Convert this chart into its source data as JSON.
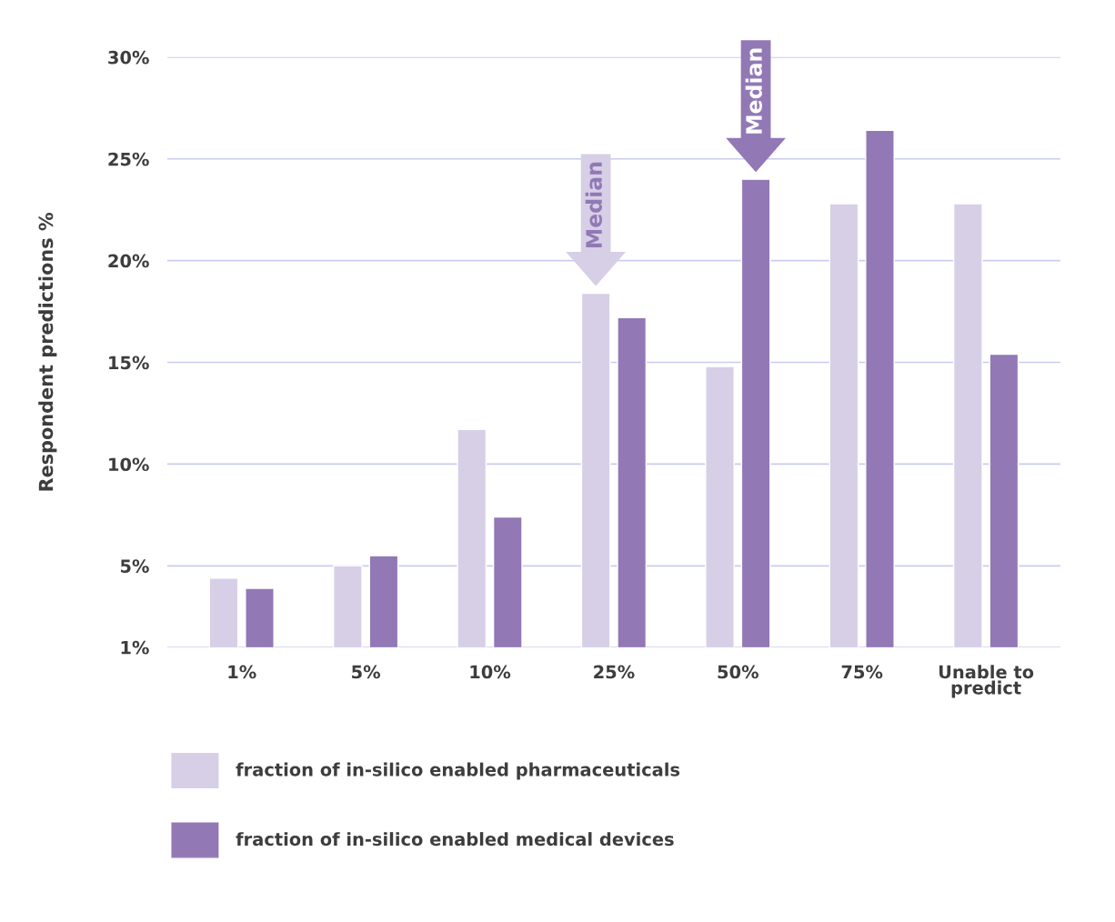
{
  "chart_data": {
    "type": "bar",
    "ylabel": "Respondent predictions %",
    "categories": [
      "1%",
      "5%",
      "10%",
      "25%",
      "50%",
      "75%",
      "Unable to\npredict"
    ],
    "series": [
      {
        "name": "fraction of in-silico enabled pharmaceuticals",
        "color": "#d6cfe6",
        "values": [
          4.4,
          5.0,
          11.7,
          18.4,
          14.8,
          22.8,
          22.8
        ]
      },
      {
        "name": "fraction of in-silico enabled medical devices",
        "color": "#9278b5",
        "values": [
          3.9,
          5.5,
          7.4,
          17.2,
          24.0,
          26.4,
          15.4
        ]
      }
    ],
    "ylim": [
      1,
      30
    ],
    "yticks": [
      {
        "value": 1,
        "label": "1%"
      },
      {
        "value": 5,
        "label": "5%"
      },
      {
        "value": 10,
        "label": "10%"
      },
      {
        "value": 15,
        "label": "15%"
      },
      {
        "value": 20,
        "label": "20%"
      },
      {
        "value": 25,
        "label": "25%"
      },
      {
        "value": 30,
        "label": "30%"
      }
    ],
    "grid": "y",
    "legend": "bottom",
    "annotations": [
      {
        "text": "Median",
        "x": "25%",
        "y": 18.4
      },
      {
        "text": "Median",
        "x": "50%",
        "y": 24.0
      }
    ]
  }
}
